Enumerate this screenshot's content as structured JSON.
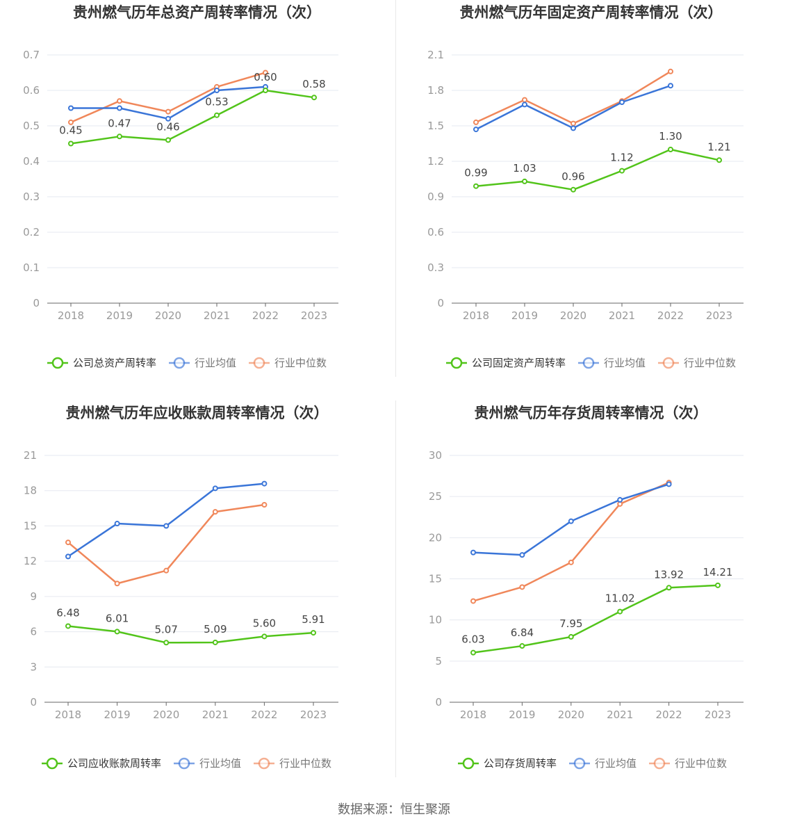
{
  "source": "数据来源：恒生聚源",
  "colors": {
    "company": "#52c41a",
    "average": "#3a75d8",
    "median": "#f0875a",
    "grid": "#e6e9f0",
    "axis": "#666666",
    "text": "#999999",
    "title": "#333333"
  },
  "chart_data": [
    {
      "type": "line",
      "title": "贵州燃气历年总资产周转率情况（次）",
      "categories": [
        "2018",
        "2019",
        "2020",
        "2021",
        "2022",
        "2023"
      ],
      "ylim": [
        0,
        0.7
      ],
      "yticks": [
        "0",
        "0.1",
        "0.2",
        "0.3",
        "0.4",
        "0.5",
        "0.6",
        "0.7"
      ],
      "legend_position": "bottom",
      "series": [
        {
          "name": "公司总资产周转率",
          "role": "company",
          "values": [
            0.45,
            0.47,
            0.46,
            0.53,
            0.6,
            0.58
          ],
          "labels": [
            "0.45",
            "0.47",
            "0.46",
            "0.53",
            "0.60",
            "0.58"
          ]
        },
        {
          "name": "行业均值",
          "role": "average",
          "values": [
            0.55,
            0.55,
            0.52,
            0.6,
            0.61,
            null
          ]
        },
        {
          "name": "行业中位数",
          "role": "median",
          "values": [
            0.51,
            0.57,
            0.54,
            0.61,
            0.65,
            null
          ]
        }
      ]
    },
    {
      "type": "line",
      "title": "贵州燃气历年固定资产周转率情况（次）",
      "categories": [
        "2018",
        "2019",
        "2020",
        "2021",
        "2022",
        "2023"
      ],
      "ylim": [
        0,
        2.1
      ],
      "yticks": [
        "0",
        "0.3",
        "0.6",
        "0.9",
        "1.2",
        "1.5",
        "1.8",
        "2.1"
      ],
      "legend_position": "bottom",
      "series": [
        {
          "name": "公司固定资产周转率",
          "role": "company",
          "values": [
            0.99,
            1.03,
            0.96,
            1.12,
            1.3,
            1.21
          ],
          "labels": [
            "0.99",
            "1.03",
            "0.96",
            "1.12",
            "1.30",
            "1.21"
          ]
        },
        {
          "name": "行业均值",
          "role": "average",
          "values": [
            1.47,
            1.68,
            1.48,
            1.7,
            1.84,
            null
          ]
        },
        {
          "name": "行业中位数",
          "role": "median",
          "values": [
            1.53,
            1.72,
            1.52,
            1.71,
            1.96,
            null
          ]
        }
      ]
    },
    {
      "type": "line",
      "title": "贵州燃气历年应收账款周转率情况（次）",
      "categories": [
        "2018",
        "2019",
        "2020",
        "2021",
        "2022",
        "2023"
      ],
      "ylim": [
        0,
        21
      ],
      "yticks": [
        "0",
        "3",
        "6",
        "9",
        "12",
        "15",
        "18",
        "21"
      ],
      "legend_position": "bottom",
      "series": [
        {
          "name": "公司应收账款周转率",
          "role": "company",
          "values": [
            6.48,
            6.01,
            5.07,
            5.09,
            5.6,
            5.91
          ],
          "labels": [
            "6.48",
            "6.01",
            "5.07",
            "5.09",
            "5.60",
            "5.91"
          ]
        },
        {
          "name": "行业均值",
          "role": "average",
          "values": [
            12.4,
            15.2,
            15.0,
            18.2,
            18.6,
            null
          ]
        },
        {
          "name": "行业中位数",
          "role": "median",
          "values": [
            13.6,
            10.1,
            11.2,
            16.2,
            16.8,
            null
          ]
        }
      ]
    },
    {
      "type": "line",
      "title": "贵州燃气历年存货周转率情况（次）",
      "categories": [
        "2018",
        "2019",
        "2020",
        "2021",
        "2022",
        "2023"
      ],
      "ylim": [
        0,
        30
      ],
      "yticks": [
        "0",
        "5",
        "10",
        "15",
        "20",
        "25",
        "30"
      ],
      "legend_position": "bottom",
      "series": [
        {
          "name": "公司存货周转率",
          "role": "company",
          "values": [
            6.03,
            6.84,
            7.95,
            11.02,
            13.92,
            14.21
          ],
          "labels": [
            "6.03",
            "6.84",
            "7.95",
            "11.02",
            "13.92",
            "14.21"
          ]
        },
        {
          "name": "行业均值",
          "role": "average",
          "values": [
            18.2,
            17.9,
            22.0,
            24.6,
            26.5,
            null
          ]
        },
        {
          "name": "行业中位数",
          "role": "median",
          "values": [
            12.3,
            14.0,
            17.0,
            24.1,
            26.7,
            null
          ]
        }
      ]
    }
  ]
}
